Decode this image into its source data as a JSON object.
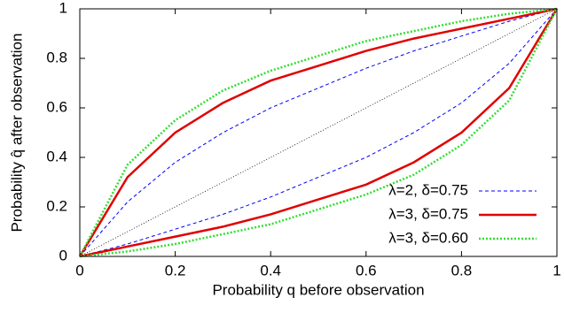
{
  "chart_data": {
    "type": "line",
    "xlabel": "Probability q before observation",
    "ylabel": "Probability q̂ after observation",
    "x": [
      0,
      0.1,
      0.2,
      0.3,
      0.4,
      0.5,
      0.6,
      0.7,
      0.8,
      0.9,
      1
    ],
    "xlim": [
      0,
      1
    ],
    "ylim": [
      0,
      1
    ],
    "xticks": [
      0,
      0.2,
      0.4,
      0.6,
      0.8,
      1
    ],
    "yticks": [
      0,
      0.2,
      0.4,
      0.6,
      0.8,
      1
    ],
    "diagonal": true,
    "legend": "lower right",
    "series": [
      {
        "name": "λ=2, δ=0.75",
        "color": "#0000ff",
        "dash": "4,3",
        "width": 1,
        "upper": [
          0,
          0.22,
          0.38,
          0.5,
          0.6,
          0.68,
          0.76,
          0.83,
          0.89,
          0.95,
          1
        ],
        "lower": [
          0,
          0.05,
          0.11,
          0.17,
          0.24,
          0.32,
          0.4,
          0.5,
          0.62,
          0.78,
          1
        ]
      },
      {
        "name": "λ=3, δ=0.75",
        "color": "#e00000",
        "dash": "none",
        "width": 2.5,
        "upper": [
          0,
          0.32,
          0.5,
          0.62,
          0.71,
          0.77,
          0.83,
          0.88,
          0.92,
          0.96,
          1
        ],
        "lower": [
          0,
          0.04,
          0.08,
          0.12,
          0.17,
          0.23,
          0.29,
          0.38,
          0.5,
          0.68,
          1
        ]
      },
      {
        "name": "λ=3, δ=0.60",
        "color": "#33dd33",
        "dash": "2,2",
        "width": 2.5,
        "upper": [
          0,
          0.37,
          0.55,
          0.67,
          0.75,
          0.81,
          0.87,
          0.91,
          0.95,
          0.98,
          1
        ],
        "lower": [
          0,
          0.02,
          0.05,
          0.09,
          0.13,
          0.19,
          0.25,
          0.33,
          0.45,
          0.63,
          1
        ]
      }
    ]
  }
}
